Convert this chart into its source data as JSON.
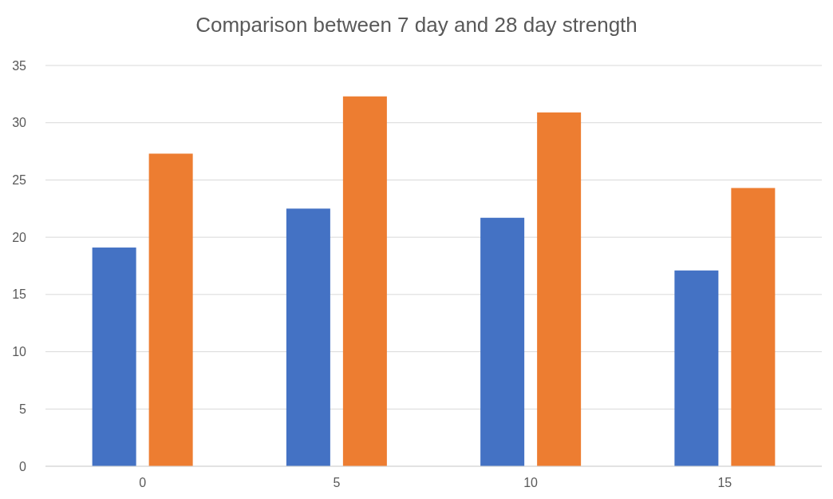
{
  "chart_data": {
    "type": "bar",
    "title": "Comparison between 7 day and 28 day strength",
    "categories": [
      "0",
      "5",
      "10",
      "15"
    ],
    "series": [
      {
        "color": "#4472c4",
        "values": [
          19.1,
          22.5,
          21.7,
          17.1
        ]
      },
      {
        "color": "#ed7d31",
        "values": [
          27.3,
          32.3,
          30.9,
          24.3
        ]
      }
    ],
    "ylim": [
      0,
      35
    ],
    "yticks": [
      0,
      5,
      10,
      15,
      20,
      25,
      30,
      35
    ],
    "grid": "y"
  }
}
